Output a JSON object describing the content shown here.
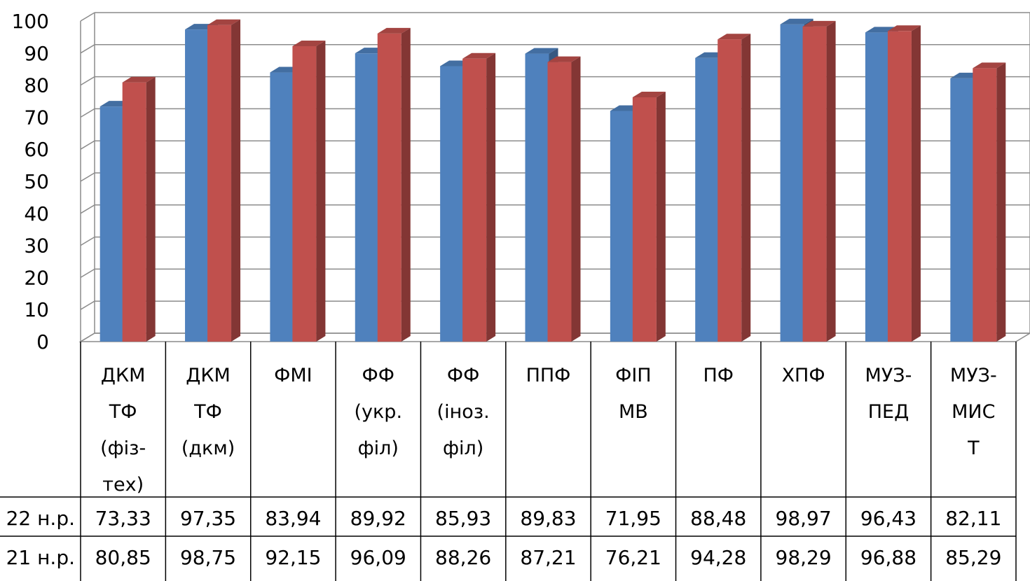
{
  "chart_data": {
    "type": "bar",
    "style": "3d-clustered-column",
    "title": "",
    "xlabel": "",
    "ylabel": "",
    "ylim": [
      0,
      100
    ],
    "y_ticks": [
      0,
      10,
      20,
      30,
      40,
      50,
      60,
      70,
      80,
      90,
      100
    ],
    "grid": true,
    "legend": "data-table-rows",
    "categories": [
      [
        "ДКМ",
        "ТФ",
        "(фіз-",
        "тех)"
      ],
      [
        "ДКМ",
        "ТФ",
        "(дкм)"
      ],
      [
        "ФМІ"
      ],
      [
        "ФФ",
        "(укр.",
        "філ)"
      ],
      [
        "ФФ",
        "(іноз.",
        "філ)"
      ],
      [
        "ППФ"
      ],
      [
        "ФІП",
        "МВ"
      ],
      [
        "ПФ"
      ],
      [
        "ХПФ"
      ],
      [
        "МУЗ-",
        "ПЕД"
      ],
      [
        "МУЗ-",
        "МИС",
        "Т"
      ]
    ],
    "series": [
      {
        "name": "22 н.р.",
        "color": "#4F81BD",
        "values": [
          73.33,
          97.35,
          83.94,
          89.92,
          85.93,
          89.83,
          71.95,
          88.48,
          98.97,
          96.43,
          82.11
        ],
        "labels": [
          "73,33",
          "97,35",
          "83,94",
          "89,92",
          "85,93",
          "89,83",
          "71,95",
          "88,48",
          "98,97",
          "96,43",
          "82,11"
        ]
      },
      {
        "name": "21 н.р.",
        "color": "#C0504D",
        "values": [
          80.85,
          98.75,
          92.15,
          96.09,
          88.26,
          87.21,
          76.21,
          94.28,
          98.29,
          96.88,
          85.29
        ],
        "labels": [
          "80,85",
          "98,75",
          "92,15",
          "96,09",
          "88,26",
          "87,21",
          "76,21",
          "94,28",
          "98,29",
          "96,88",
          "85,29"
        ]
      }
    ]
  }
}
